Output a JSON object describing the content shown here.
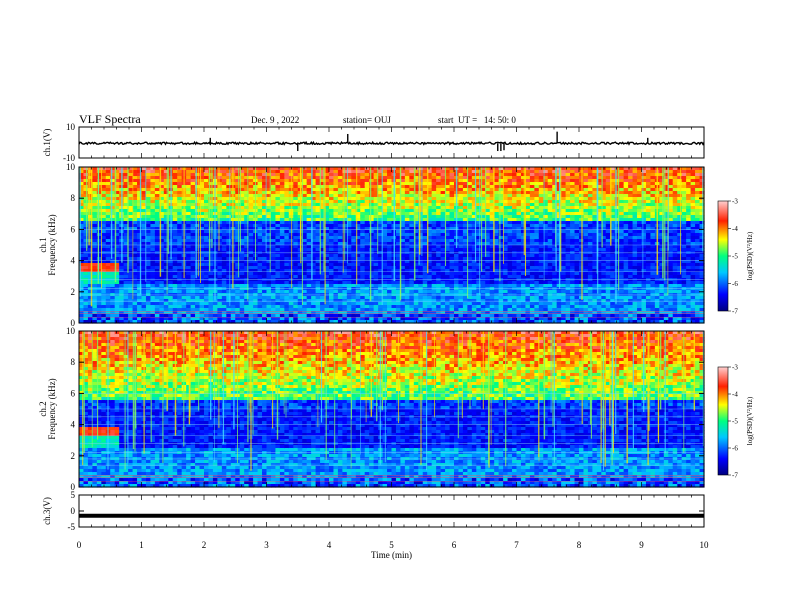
{
  "header": {
    "title": "VLF Spectra",
    "date": "Dec. 9 , 2022",
    "station": "station= OUJ",
    "start": "start  UT =   14: 50: 0"
  },
  "chart_data": [
    {
      "type": "line",
      "name": "ch1-waveform",
      "ylabel": "ch.1(V)",
      "ylim": [
        -10,
        10
      ],
      "yticks": [
        "10",
        "-10"
      ],
      "x_range_min": [
        0,
        10
      ],
      "baseline": -0.5,
      "spikes": [
        {
          "x": 3.5,
          "y": -5.5
        },
        {
          "x": 4.3,
          "y": 5.5
        },
        {
          "x": 6.7,
          "y": -5.5
        },
        {
          "x": 6.75,
          "y": -5.5
        },
        {
          "x": 6.8,
          "y": -5.0
        },
        {
          "x": 7.65,
          "y": 7.0
        },
        {
          "x": 2.1,
          "y": 3.0
        },
        {
          "x": 9.1,
          "y": 3.0
        }
      ]
    },
    {
      "type": "heatmap",
      "name": "ch1-spectrogram",
      "ylabel": "ch.1\nFrequency  (kHz)",
      "ylim": [
        0,
        10
      ],
      "yticks": [
        "0",
        "2",
        "4",
        "6",
        "8",
        "10"
      ],
      "xlim": [
        0,
        10
      ],
      "colorbar": {
        "range": [
          -7,
          -3
        ],
        "ticks": [
          "-3",
          "-4",
          "-5",
          "-6",
          "-7"
        ],
        "label": "log(PSD)(V²/Hz)"
      },
      "features": {
        "high_band_min_khz": 6.5,
        "noise_band_khz": [
          3.3,
          3.8
        ],
        "noise_band_end_min": 0.65
      }
    },
    {
      "type": "heatmap",
      "name": "ch2-spectrogram",
      "ylabel": "ch.2\nFrequency  (kHz)",
      "ylim": [
        0,
        10
      ],
      "yticks": [
        "0",
        "2",
        "4",
        "6",
        "8",
        "10"
      ],
      "xlim": [
        0,
        10
      ],
      "colorbar": {
        "range": [
          -7,
          -3
        ],
        "ticks": [
          "-3",
          "-4",
          "-5",
          "-6",
          "-7"
        ],
        "label": "log(PSD)(V²/Hz)"
      },
      "features": {
        "high_band_min_khz": 5.5,
        "noise_band_khz": [
          3.3,
          3.8
        ],
        "noise_band_end_min": 0.65
      }
    },
    {
      "type": "line",
      "name": "ch3-waveform",
      "ylabel": "ch.3(V)",
      "ylim": [
        -5,
        5
      ],
      "yticks": [
        "5",
        "0",
        "-5"
      ],
      "baseline": -1.5
    }
  ],
  "xaxis": {
    "label": "Time  (min)",
    "ticks": [
      "0",
      "1",
      "2",
      "3",
      "4",
      "5",
      "6",
      "7",
      "8",
      "9",
      "10"
    ]
  }
}
